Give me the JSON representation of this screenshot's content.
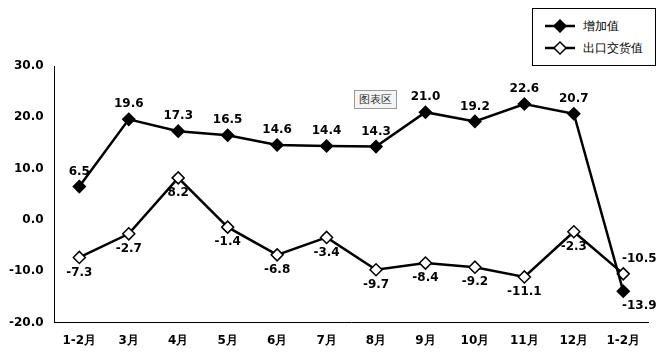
{
  "chart_data": {
    "type": "line",
    "categories": [
      "1-2月",
      "3月",
      "4月",
      "5月",
      "6月",
      "7月",
      "8月",
      "9月",
      "10月",
      "11月",
      "12月",
      "1-2月"
    ],
    "series": [
      {
        "name": "增加值",
        "color": "#000000",
        "marker": "diamond",
        "line_style": "solid",
        "values": [
          6.5,
          19.6,
          17.3,
          16.5,
          14.6,
          14.4,
          14.3,
          21.0,
          19.2,
          22.6,
          20.7,
          -13.9
        ],
        "value_labels": [
          "6.5",
          "19.6",
          "17.3",
          "16.5",
          "14.6",
          "14.4",
          "14.3",
          "21.0",
          "19.2",
          "22.6",
          "20.7",
          "-13.9"
        ]
      },
      {
        "name": "出口交货值",
        "color": "#000000",
        "marker": "open_diamond",
        "line_style": "solid",
        "values": [
          -7.3,
          -2.7,
          8.2,
          -1.4,
          -6.8,
          -3.4,
          -9.7,
          -8.4,
          -9.2,
          -11.1,
          -2.3,
          -10.5
        ],
        "value_labels": [
          "-7.3",
          "-2.7",
          "8.2",
          "-1.4",
          "-6.8",
          "-3.4",
          "-9.7",
          "-8.4",
          "-9.2",
          "-11.1",
          "-2.3",
          "-10.5"
        ]
      }
    ],
    "ylim": [
      -20,
      30
    ],
    "yticks": [
      {
        "value": -20,
        "label": "-20.0"
      },
      {
        "value": -10,
        "label": "-10.0"
      },
      {
        "value": 0,
        "label": "0.0"
      },
      {
        "value": 10,
        "label": "10.0"
      },
      {
        "value": 20,
        "label": "20.0"
      },
      {
        "value": 30,
        "label": "30.0"
      }
    ],
    "grid": false,
    "legend": "top-right",
    "data_labels": true,
    "annotations": [
      "图表区"
    ]
  }
}
